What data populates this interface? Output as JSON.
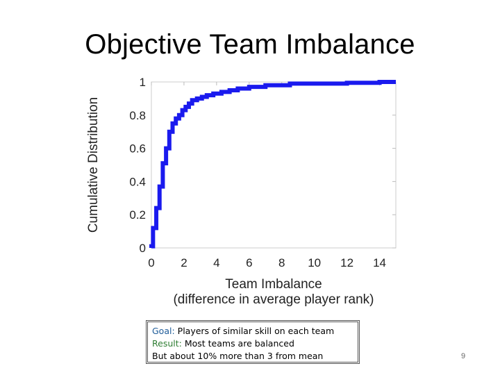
{
  "slide": {
    "title": "Objective Team Imbalance",
    "page_number": "9"
  },
  "note": {
    "goal_label": "Goal:",
    "goal_text": " Players of similar skill on each team",
    "result_label": "Result:",
    "result_text": " Most teams are balanced",
    "extra_text": "But about 10% more than 3 from mean"
  },
  "colors": {
    "series": "#1a1aee",
    "goal_label": "#1f5c99",
    "result_label": "#2e7d32"
  },
  "chart_data": {
    "type": "line",
    "xlabel": "Team Imbalance",
    "xlabel_sub": "(difference in average player rank)",
    "ylabel": "Cumulative Distribution",
    "xlim": [
      0,
      15
    ],
    "ylim": [
      0,
      1
    ],
    "x_ticks": [
      "0",
      "2",
      "4",
      "6",
      "8",
      "10",
      "12",
      "14"
    ],
    "y_ticks": [
      "0",
      "0.2",
      "0.4",
      "0.6",
      "0.8",
      "1"
    ],
    "grid": false,
    "step": true,
    "series": [
      {
        "name": "",
        "x": [
          0,
          0.1,
          0.3,
          0.5,
          0.7,
          0.9,
          1.1,
          1.3,
          1.5,
          1.7,
          1.9,
          2.1,
          2.3,
          2.5,
          2.8,
          3.1,
          3.4,
          3.8,
          4.3,
          4.8,
          5.3,
          6.0,
          7.0,
          8.5,
          10.0,
          12.0,
          14.0,
          15.0
        ],
        "y": [
          0.01,
          0.12,
          0.24,
          0.37,
          0.51,
          0.6,
          0.7,
          0.75,
          0.78,
          0.8,
          0.83,
          0.85,
          0.87,
          0.89,
          0.9,
          0.91,
          0.92,
          0.93,
          0.94,
          0.95,
          0.96,
          0.97,
          0.98,
          0.99,
          0.99,
          0.995,
          1.0,
          1.0
        ]
      }
    ]
  }
}
